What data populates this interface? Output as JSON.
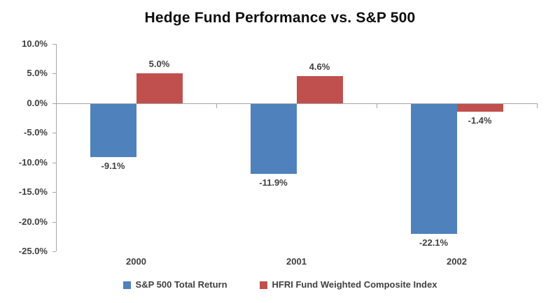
{
  "chart_data": {
    "type": "bar",
    "title": "Hedge Fund Performance vs. S&P 500",
    "categories": [
      "2000",
      "2001",
      "2002"
    ],
    "series": [
      {
        "name": "S&P 500 Total Return",
        "color": "#4F81BD",
        "values": [
          -9.1,
          -11.9,
          -22.1
        ],
        "labels": [
          "-9.1%",
          "-11.9%",
          "-22.1%"
        ]
      },
      {
        "name": "HFRI Fund Weighted Composite Index",
        "color": "#C0504D",
        "values": [
          5.0,
          4.6,
          -1.4
        ],
        "labels": [
          "5.0%",
          "4.6%",
          "-1.4%"
        ]
      }
    ],
    "ylim": [
      -25,
      10
    ],
    "ytick_step": 5,
    "yticks": [
      "10.0%",
      "5.0%",
      "0.0%",
      "-5.0%",
      "-10.0%",
      "-15.0%",
      "-20.0%",
      "-25.0%"
    ],
    "grid": false,
    "legend_position": "bottom",
    "axis_color": "#A6A6A6",
    "text_color": "#404040"
  }
}
